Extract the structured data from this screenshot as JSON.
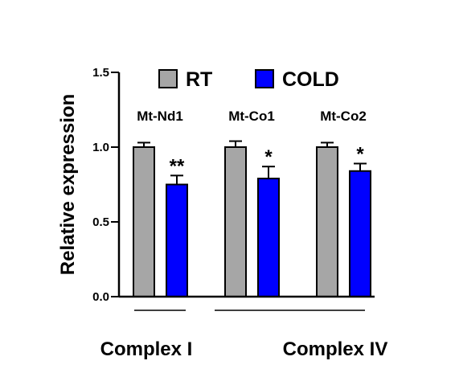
{
  "chart_data": {
    "type": "bar",
    "ylabel": "Relative expression",
    "ylim": [
      0,
      1.5
    ],
    "yticks": [
      "0.0",
      "0.5",
      "1.0",
      "1.5"
    ],
    "categories": [
      "Mt-Nd1",
      "Mt-Co1",
      "Mt-Co2"
    ],
    "series": [
      {
        "name": "RT",
        "color": "#a6a6a6",
        "values": [
          1.0,
          1.0,
          1.0
        ],
        "errors": [
          0.03,
          0.04,
          0.03
        ]
      },
      {
        "name": "COLD",
        "color": "#0000ff",
        "values": [
          0.75,
          0.79,
          0.84
        ],
        "errors": [
          0.06,
          0.08,
          0.05
        ]
      }
    ],
    "significance": [
      "**",
      "*",
      "*"
    ],
    "groups": [
      {
        "label": "Complex I",
        "categories": [
          "Mt-Nd1"
        ]
      },
      {
        "label": "Complex IV",
        "categories": [
          "Mt-Co1",
          "Mt-Co2"
        ]
      }
    ],
    "legend_position": "top",
    "grid": false
  }
}
